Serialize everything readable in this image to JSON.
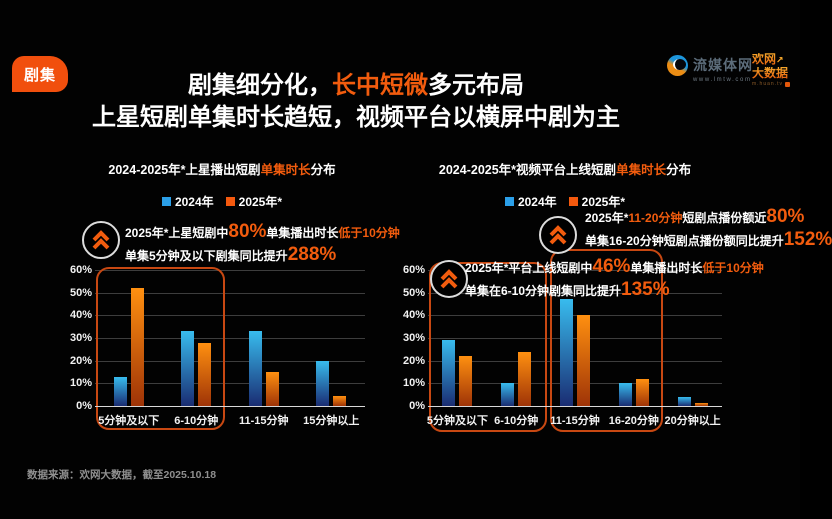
{
  "badge": {
    "label": "剧集"
  },
  "logos": {
    "lmtw": {
      "name": "流媒体网",
      "url": "www.lmtw.com"
    },
    "huan": {
      "line1": "欢网",
      "arrow": "↗",
      "line2": "大数据",
      "url": "m.huan.tv"
    }
  },
  "header": {
    "title_line1": {
      "pre": "剧集细分化，",
      "accent": "长中短微",
      "post": "多元布局"
    },
    "title_line2": "上星短剧单集时长趋短，视频平台以横屏中剧为主"
  },
  "charts": {
    "left": {
      "title_pre": "2024-2025年*上星播出短剧",
      "title_accent": "单集时长",
      "title_post": "分布",
      "legend": [
        "2024年",
        "2025年*"
      ],
      "callout": {
        "line1_pre": "2025年*上星短剧中",
        "line1_big": "80%",
        "line1_mid": "单集播出时长",
        "line1_accent": "低于10分钟",
        "line2_pre": "单集5分钟及以下剧集同比提升",
        "line2_big": "288%"
      }
    },
    "right": {
      "title_pre": "2024-2025年*视频平台上线短剧",
      "title_accent": "单集时长",
      "title_post": "分布",
      "legend": [
        "2024年",
        "2025年*"
      ],
      "callout_top": {
        "line1_pre": "2025年*",
        "line1_accent": "11-20分钟",
        "line1_mid": "短剧点播份额近",
        "line1_big": "80%",
        "line2_pre": "单集16-20分钟短剧点播份额同比提升",
        "line2_big": "152%"
      },
      "callout_bottom": {
        "line1_pre": "2025年*平台上线短剧中",
        "line1_big": "46%",
        "line1_mid": "单集播出时长",
        "line1_accent": "低于10分钟",
        "line2_pre": "单集在6-10分钟剧集同比提升",
        "line2_big": "135%"
      }
    }
  },
  "footer": {
    "source": "数据来源：欢网大数据，截至2025.10.18"
  },
  "colors": {
    "accent_orange": "#f25c0e",
    "badge_orange": "#f14f0d",
    "bar_blue_top": "#38bcee",
    "bar_blue_bottom": "#1a2c72",
    "bar_orange_top": "#ff9010",
    "bar_orange_bottom": "#9e3307",
    "legend_blue": "#2b9fe8",
    "legend_orange": "#f4590e",
    "highlight_border": "#c84812",
    "gridline": "#3d3d3d"
  },
  "chart_data": [
    {
      "type": "bar",
      "title": "2024-2025年*上星播出短剧单集时长分布",
      "categories": [
        "5分钟及以下",
        "6-10分钟",
        "11-15分钟",
        "15分钟以上"
      ],
      "series": [
        {
          "name": "2024年",
          "color": "blue",
          "values": [
            13,
            33,
            33,
            20
          ]
        },
        {
          "name": "2025年*",
          "color": "orange",
          "values": [
            52,
            28,
            15,
            4.5
          ]
        }
      ],
      "ylim": [
        0,
        60
      ],
      "ytick_step": 10,
      "ytick_suffix": "%",
      "grid": true,
      "legend_position": "top",
      "highlighted_categories": [
        "5分钟及以下",
        "6-10分钟"
      ]
    },
    {
      "type": "bar",
      "title": "2024-2025年*视频平台上线短剧单集时长分布",
      "categories": [
        "5分钟及以下",
        "6-10分钟",
        "11-15分钟",
        "16-20分钟",
        "20分钟以上"
      ],
      "series": [
        {
          "name": "2024年",
          "color": "blue",
          "values": [
            29,
            10,
            47,
            10,
            4
          ]
        },
        {
          "name": "2025年*",
          "color": "orange",
          "values": [
            22,
            24,
            40,
            12,
            1.5
          ]
        }
      ],
      "ylim": [
        0,
        60
      ],
      "ytick_step": 10,
      "ytick_suffix": "%",
      "grid": true,
      "legend_position": "top",
      "highlighted_categories": [
        "5分钟及以下",
        "6-10分钟",
        "11-15分钟",
        "16-20分钟"
      ]
    }
  ]
}
